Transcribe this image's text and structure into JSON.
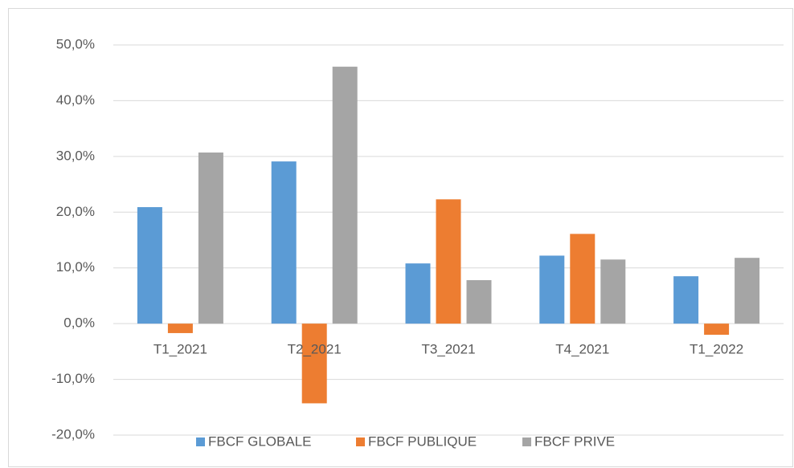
{
  "chart_data": {
    "type": "bar",
    "categories": [
      "T1_2021",
      "T2_2021",
      "T3_2021",
      "T4_2021",
      "T1_2022"
    ],
    "series": [
      {
        "name": "FBCF GLOBALE",
        "color": "#5b9bd5",
        "values": [
          20.9,
          29.1,
          10.8,
          12.2,
          8.5
        ]
      },
      {
        "name": "FBCF PUBLIQUE",
        "color": "#ed7d31",
        "values": [
          -1.7,
          -14.3,
          22.3,
          16.1,
          -2.0
        ]
      },
      {
        "name": "FBCF PRIVE",
        "color": "#a5a5a5",
        "values": [
          30.7,
          46.1,
          7.8,
          11.5,
          11.8
        ]
      }
    ],
    "ylim": [
      -20,
      50
    ],
    "yticks": [
      {
        "value": -20,
        "label": "-20,0%"
      },
      {
        "value": -10,
        "label": "-10,0%"
      },
      {
        "value": 0,
        "label": "0,0%"
      },
      {
        "value": 10,
        "label": "10,0%"
      },
      {
        "value": 20,
        "label": "20,0%"
      },
      {
        "value": 30,
        "label": "30,0%"
      },
      {
        "value": 40,
        "label": "40,0%"
      },
      {
        "value": 50,
        "label": "50,0%"
      }
    ],
    "grid": true,
    "legend": "bottom"
  }
}
